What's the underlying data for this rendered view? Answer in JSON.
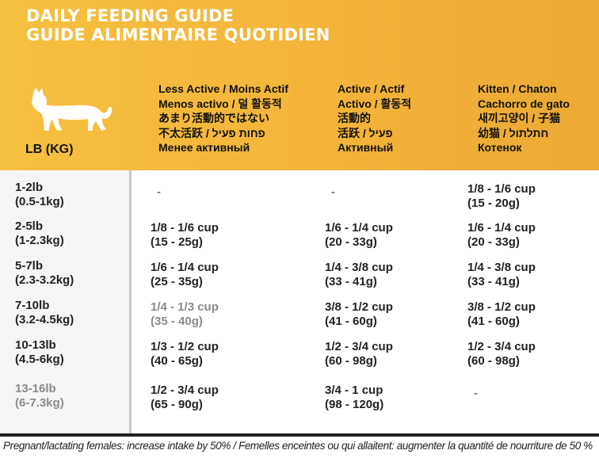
{
  "header": {
    "title_en": "DAILY FEEDING GUIDE",
    "title_fr": "GUIDE ALIMENTAIRE QUOTIDIEN",
    "unit_label": "LB (KG)",
    "icon": "cat-icon"
  },
  "columns": [
    {
      "lines": [
        "Less Active / Moins Actif",
        "Menos activo / 덜 활동적",
        "あまり活動的ではない",
        "不太活跃 / פחות פעיל",
        "Менее активный"
      ]
    },
    {
      "lines": [
        "Active / Actif",
        "Activo / 활동적",
        "活動的",
        "活跃 / פעיל",
        "Активный"
      ]
    },
    {
      "lines": [
        "Kitten / Chaton",
        "Cachorro de gato",
        "새끼고양이 / 子猫",
        "幼猫 / חתלתול",
        "Котенок"
      ]
    }
  ],
  "rows": [
    {
      "lb": "1-2lb",
      "kg": "(0.5-1kg)",
      "cells": [
        {
          "cup": "-",
          "grams": ""
        },
        {
          "cup": "-",
          "grams": ""
        },
        {
          "cup": "1/8 - 1/6 cup",
          "grams": "(15 - 20g)"
        }
      ]
    },
    {
      "lb": "2-5lb",
      "kg": "(1-2.3kg)",
      "cells": [
        {
          "cup": "1/8 - 1/6 cup",
          "grams": "(15 - 25g)"
        },
        {
          "cup": "1/6 - 1/4 cup",
          "grams": "(20 - 33g)"
        },
        {
          "cup": "1/6 - 1/4 cup",
          "grams": "(20 - 33g)"
        }
      ]
    },
    {
      "lb": "5-7lb",
      "kg": "(2.3-3.2kg)",
      "cells": [
        {
          "cup": "1/6 - 1/4 cup",
          "grams": "(25 - 35g)"
        },
        {
          "cup": "1/4 - 3/8 cup",
          "grams": "(33 - 41g)"
        },
        {
          "cup": "1/4 - 3/8 cup",
          "grams": "(33 - 41g)"
        }
      ]
    },
    {
      "lb": "7-10lb",
      "kg": "(3.2-4.5kg)",
      "cells": [
        {
          "cup": "1/4 - 1/3 cup",
          "grams": "(35 - 40g)"
        },
        {
          "cup": "3/8 - 1/2 cup",
          "grams": "(41 - 60g)"
        },
        {
          "cup": "3/8 - 1/2 cup",
          "grams": "(41 - 60g)"
        }
      ]
    },
    {
      "lb": "10-13lb",
      "kg": "(4.5-6kg)",
      "cells": [
        {
          "cup": "1/3 - 1/2 cup",
          "grams": "(40 - 65g)"
        },
        {
          "cup": "1/2 - 3/4 cup",
          "grams": "(60 - 98g)"
        },
        {
          "cup": "1/2 - 3/4 cup",
          "grams": "(60 - 98g)"
        }
      ]
    },
    {
      "lb": "13-16lb",
      "kg": "(6-7.3kg)",
      "cells": [
        {
          "cup": "1/2 - 3/4 cup",
          "grams": "(65 - 90g)"
        },
        {
          "cup": "3/4 - 1 cup",
          "grams": "(98 - 120g)"
        },
        {
          "cup": "-",
          "grams": ""
        }
      ]
    }
  ],
  "footer": {
    "note": "Pregnant/lactating females: increase intake by 50% / Femelles enceintes ou qui allaitent: augmenter la quantité de nourriture de 50 %"
  },
  "colors": {
    "header_bg": "#f4b43a",
    "title_text": "#ffffff",
    "table_text": "#222222"
  }
}
